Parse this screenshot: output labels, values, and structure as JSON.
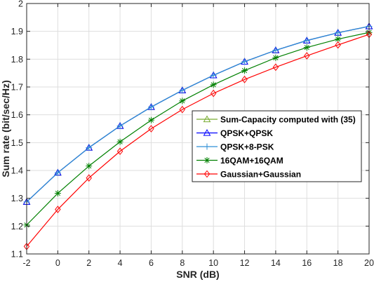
{
  "chart_data": {
    "type": "line",
    "title": "",
    "xlabel": "SNR (dB)",
    "ylabel": "Sum rate (bit/sec/Hz)",
    "xlim": [
      -2,
      20
    ],
    "ylim": [
      1.1,
      2
    ],
    "x_ticks": [
      -2,
      0,
      2,
      4,
      6,
      8,
      10,
      12,
      14,
      16,
      18,
      20
    ],
    "y_ticks": [
      1.1,
      1.2,
      1.3,
      1.4,
      1.5,
      1.6,
      1.7,
      1.8,
      1.9,
      2
    ],
    "grid": true,
    "legend_position": "right",
    "x": [
      -2,
      0,
      2,
      4,
      6,
      8,
      10,
      12,
      14,
      16,
      18,
      20
    ],
    "series": [
      {
        "name": "Sum-Capacity computed with (35)",
        "color": "#77ac30",
        "marker": "triangle-up",
        "values": [
          1.287,
          1.392,
          1.482,
          1.56,
          1.628,
          1.688,
          1.742,
          1.791,
          1.832,
          1.867,
          1.895,
          1.918
        ]
      },
      {
        "name": "QPSK+QPSK",
        "color": "#0000ff",
        "marker": "triangle-up",
        "values": [
          1.287,
          1.392,
          1.482,
          1.56,
          1.628,
          1.688,
          1.742,
          1.791,
          1.832,
          1.867,
          1.895,
          1.918
        ]
      },
      {
        "name": "QPSK+8-PSK",
        "color": "#2f8fd6",
        "marker": "plus",
        "values": [
          1.287,
          1.392,
          1.482,
          1.56,
          1.628,
          1.688,
          1.742,
          1.791,
          1.832,
          1.867,
          1.895,
          1.918
        ]
      },
      {
        "name": "16QAM+16QAM",
        "color": "#008000",
        "marker": "asterisk",
        "values": [
          1.204,
          1.318,
          1.416,
          1.503,
          1.581,
          1.65,
          1.708,
          1.759,
          1.805,
          1.842,
          1.872,
          1.896
        ]
      },
      {
        "name": "Gaussian+Gaussian",
        "color": "#ff0000",
        "marker": "diamond",
        "values": [
          1.127,
          1.26,
          1.373,
          1.469,
          1.55,
          1.619,
          1.677,
          1.727,
          1.771,
          1.812,
          1.851,
          1.889
        ]
      }
    ]
  }
}
